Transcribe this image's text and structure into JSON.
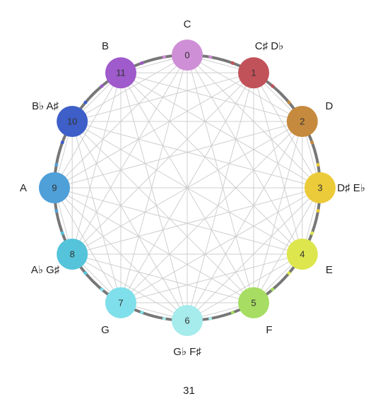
{
  "diagram": {
    "type": "pitch-class-circle",
    "rim_color": "#777777",
    "chord_color": "#cfcfcf",
    "nodes": [
      {
        "number": "0",
        "note": "C",
        "color": "#cf8fd6"
      },
      {
        "number": "1",
        "note": "C♯ D♭",
        "color": "#c2525a"
      },
      {
        "number": "2",
        "note": "D",
        "color": "#c58a3e"
      },
      {
        "number": "3",
        "note": "D♯ E♭",
        "color": "#eccb3a"
      },
      {
        "number": "4",
        "note": "E",
        "color": "#dde64c"
      },
      {
        "number": "5",
        "note": "F",
        "color": "#a6dd62"
      },
      {
        "number": "6",
        "note": "G♭ F♯",
        "color": "#a6ecec"
      },
      {
        "number": "7",
        "note": "G",
        "color": "#7fdfea"
      },
      {
        "number": "8",
        "note": "A♭ G♯",
        "color": "#55c4da"
      },
      {
        "number": "9",
        "note": "A",
        "color": "#4f9fd8"
      },
      {
        "number": "10",
        "note": "B♭ A♯",
        "color": "#3e5fc8"
      },
      {
        "number": "11",
        "note": "B",
        "color": "#9f5acb"
      }
    ]
  },
  "page_number": "31"
}
